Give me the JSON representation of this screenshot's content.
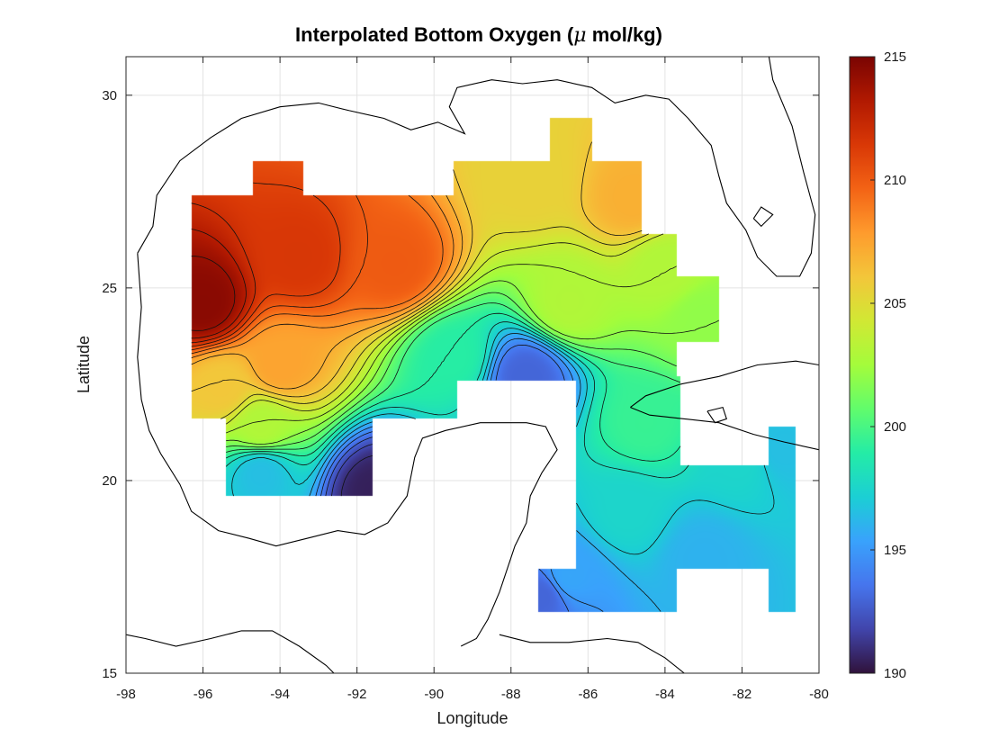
{
  "chart_data": {
    "type": "heatmap",
    "title_prefix": "Interpolated Bottom Oxygen (",
    "title_symbol": "μ",
    "title_suffix": " mol/kg)",
    "xlabel": "Longitude",
    "ylabel": "Latitude",
    "xlim": [
      -98,
      -80
    ],
    "ylim": [
      15,
      31
    ],
    "xticks": [
      "-98",
      "-96",
      "-94",
      "-92",
      "-90",
      "-88",
      "-86",
      "-84",
      "-82",
      "-80"
    ],
    "xtick_values": [
      -98,
      -96,
      -94,
      -92,
      -90,
      -88,
      -86,
      -84,
      -82,
      -80
    ],
    "yticks": [
      "15",
      "20",
      "25",
      "30"
    ],
    "ytick_values": [
      15,
      20,
      25,
      30
    ],
    "grid": true,
    "colorbar": {
      "clim": [
        190,
        215
      ],
      "ticks": [
        "190",
        "195",
        "200",
        "205",
        "210",
        "215"
      ],
      "tick_values": [
        190,
        195,
        200,
        205,
        210,
        215
      ],
      "colormap": "turbo",
      "colors": [
        "#30123b",
        "#4145ab",
        "#4675ed",
        "#39a2fc",
        "#1bcfd4",
        "#24eca6",
        "#61fc6c",
        "#a4fc3b",
        "#d1e834",
        "#f3c63a",
        "#fe9b2d",
        "#f36315",
        "#d93806",
        "#b11901",
        "#7a0402"
      ]
    },
    "sources": [
      {
        "lon": -96.0,
        "lat": 24.6,
        "value": 214.5
      },
      {
        "lon": -93.5,
        "lat": 25.8,
        "value": 211.5
      },
      {
        "lon": -91.0,
        "lat": 25.6,
        "value": 210.0
      },
      {
        "lon": -95.5,
        "lat": 22.4,
        "value": 206.0
      },
      {
        "lon": -94.0,
        "lat": 23.0,
        "value": 207.5
      },
      {
        "lon": -91.5,
        "lat": 19.7,
        "value": 190.5
      },
      {
        "lon": -94.5,
        "lat": 20.2,
        "value": 196.5
      },
      {
        "lon": -94.5,
        "lat": 21.4,
        "value": 203.0
      },
      {
        "lon": -87.6,
        "lat": 22.7,
        "value": 193.0
      },
      {
        "lon": -89.5,
        "lat": 23.2,
        "value": 199.0
      },
      {
        "lon": -86.5,
        "lat": 24.6,
        "value": 203.0
      },
      {
        "lon": -87.5,
        "lat": 27.8,
        "value": 205.5
      },
      {
        "lon": -84.8,
        "lat": 27.3,
        "value": 207.0
      },
      {
        "lon": -84.0,
        "lat": 25.5,
        "value": 203.0
      },
      {
        "lon": -83.0,
        "lat": 24.2,
        "value": 202.0
      },
      {
        "lon": -84.5,
        "lat": 21.5,
        "value": 199.5
      },
      {
        "lon": -82.0,
        "lat": 20.5,
        "value": 197.5
      },
      {
        "lon": -81.0,
        "lat": 20.8,
        "value": 196.5
      },
      {
        "lon": -83.0,
        "lat": 18.0,
        "value": 196.0
      },
      {
        "lon": -86.5,
        "lat": 17.5,
        "value": 195.5
      },
      {
        "lon": -87.2,
        "lat": 17.0,
        "value": 193.0
      },
      {
        "lon": -85.0,
        "lat": 19.2,
        "value": 197.5
      }
    ],
    "mask_cells": [
      {
        "lon": [
          -96.3,
          -89.4
        ],
        "lat": [
          21.6,
          27.4
        ]
      },
      {
        "lon": [
          -95.4,
          -91.6
        ],
        "lat": [
          19.6,
          21.7
        ]
      },
      {
        "lon": [
          -94.7,
          -93.4
        ],
        "lat": [
          27.3,
          28.3
        ]
      },
      {
        "lon": [
          -89.5,
          -84.6
        ],
        "lat": [
          22.6,
          28.3
        ]
      },
      {
        "lon": [
          -87.0,
          -85.9
        ],
        "lat": [
          28.2,
          29.4
        ]
      },
      {
        "lon": [
          -84.7,
          -83.7
        ],
        "lat": [
          21.4,
          26.4
        ]
      },
      {
        "lon": [
          -83.8,
          -82.6
        ],
        "lat": [
          23.6,
          25.3
        ]
      },
      {
        "lon": [
          -86.3,
          -83.6
        ],
        "lat": [
          20.3,
          22.7
        ]
      },
      {
        "lon": [
          -86.3,
          -80.6
        ],
        "lat": [
          17.7,
          20.4
        ]
      },
      {
        "lon": [
          -81.3,
          -80.6
        ],
        "lat": [
          16.6,
          21.4
        ]
      },
      {
        "lon": [
          -86.3,
          -83.7
        ],
        "lat": [
          16.6,
          17.8
        ]
      },
      {
        "lon": [
          -87.3,
          -86.2
        ],
        "lat": [
          16.6,
          17.7
        ]
      }
    ],
    "coastline": [
      [
        [
          -97.7,
          25.9
        ],
        [
          -97.3,
          26.6
        ],
        [
          -97.2,
          27.4
        ],
        [
          -96.6,
          28.3
        ],
        [
          -95.8,
          28.9
        ],
        [
          -95.0,
          29.4
        ],
        [
          -94.0,
          29.7
        ],
        [
          -93.0,
          29.8
        ],
        [
          -92.2,
          29.6
        ],
        [
          -91.3,
          29.4
        ],
        [
          -90.6,
          29.1
        ],
        [
          -89.9,
          29.3
        ],
        [
          -89.2,
          29.0
        ],
        [
          -89.6,
          29.7
        ],
        [
          -89.4,
          30.2
        ],
        [
          -88.5,
          30.4
        ],
        [
          -87.7,
          30.3
        ],
        [
          -86.8,
          30.4
        ],
        [
          -85.9,
          30.2
        ],
        [
          -85.3,
          29.8
        ],
        [
          -84.5,
          30.0
        ],
        [
          -83.9,
          29.9
        ],
        [
          -83.4,
          29.4
        ],
        [
          -82.8,
          28.7
        ],
        [
          -82.6,
          27.9
        ],
        [
          -82.4,
          27.2
        ],
        [
          -81.9,
          26.5
        ],
        [
          -81.6,
          25.8
        ],
        [
          -81.1,
          25.3
        ],
        [
          -80.5,
          25.3
        ],
        [
          -80.2,
          25.9
        ],
        [
          -80.1,
          26.9
        ],
        [
          -80.4,
          28.0
        ],
        [
          -80.7,
          29.2
        ],
        [
          -81.2,
          30.4
        ],
        [
          -81.3,
          31.0
        ]
      ],
      [
        [
          -97.7,
          25.9
        ],
        [
          -97.6,
          24.5
        ],
        [
          -97.7,
          23.2
        ],
        [
          -97.6,
          22.1
        ],
        [
          -97.4,
          21.3
        ],
        [
          -97.1,
          20.7
        ],
        [
          -96.6,
          19.9
        ],
        [
          -96.3,
          19.2
        ],
        [
          -95.6,
          18.7
        ],
        [
          -94.8,
          18.5
        ],
        [
          -94.1,
          18.3
        ],
        [
          -93.3,
          18.5
        ],
        [
          -92.5,
          18.7
        ],
        [
          -91.8,
          18.6
        ],
        [
          -91.2,
          18.9
        ],
        [
          -90.7,
          19.6
        ],
        [
          -90.5,
          20.6
        ],
        [
          -90.3,
          21.1
        ],
        [
          -89.7,
          21.3
        ],
        [
          -88.8,
          21.5
        ],
        [
          -87.6,
          21.5
        ],
        [
          -87.1,
          21.4
        ],
        [
          -86.8,
          20.8
        ],
        [
          -87.2,
          20.2
        ],
        [
          -87.5,
          19.6
        ],
        [
          -87.6,
          18.9
        ],
        [
          -87.9,
          18.3
        ],
        [
          -88.1,
          17.7
        ],
        [
          -88.3,
          17.1
        ],
        [
          -88.6,
          16.4
        ],
        [
          -88.9,
          15.9
        ],
        [
          -89.3,
          15.7
        ]
      ],
      [
        [
          -84.9,
          21.9
        ],
        [
          -84.5,
          22.2
        ],
        [
          -83.6,
          22.5
        ],
        [
          -82.6,
          22.7
        ],
        [
          -81.6,
          23.0
        ],
        [
          -80.6,
          23.1
        ],
        [
          -80.0,
          23.0
        ]
      ],
      [
        [
          -84.9,
          21.9
        ],
        [
          -84.4,
          21.7
        ],
        [
          -83.5,
          21.6
        ],
        [
          -82.6,
          21.5
        ],
        [
          -81.7,
          21.2
        ],
        [
          -80.9,
          21.0
        ],
        [
          -80.0,
          20.8
        ]
      ],
      [
        [
          -82.9,
          21.8
        ],
        [
          -82.5,
          21.9
        ],
        [
          -82.4,
          21.6
        ],
        [
          -82.7,
          21.5
        ],
        [
          -82.9,
          21.8
        ]
      ],
      [
        [
          -81.7,
          26.8
        ],
        [
          -81.5,
          27.1
        ],
        [
          -81.2,
          26.9
        ],
        [
          -81.5,
          26.6
        ],
        [
          -81.7,
          26.8
        ]
      ],
      [
        [
          -88.3,
          16.0
        ],
        [
          -87.5,
          15.8
        ],
        [
          -86.5,
          15.8
        ],
        [
          -85.5,
          15.9
        ],
        [
          -84.7,
          15.8
        ],
        [
          -84.0,
          15.4
        ],
        [
          -83.5,
          15.0
        ]
      ],
      [
        [
          -98.0,
          16.0
        ],
        [
          -97.5,
          15.9
        ],
        [
          -96.7,
          15.7
        ],
        [
          -95.8,
          15.9
        ],
        [
          -95.0,
          16.1
        ],
        [
          -94.2,
          16.1
        ],
        [
          -93.5,
          15.7
        ],
        [
          -92.8,
          15.2
        ],
        [
          -92.2,
          14.6
        ]
      ]
    ]
  }
}
